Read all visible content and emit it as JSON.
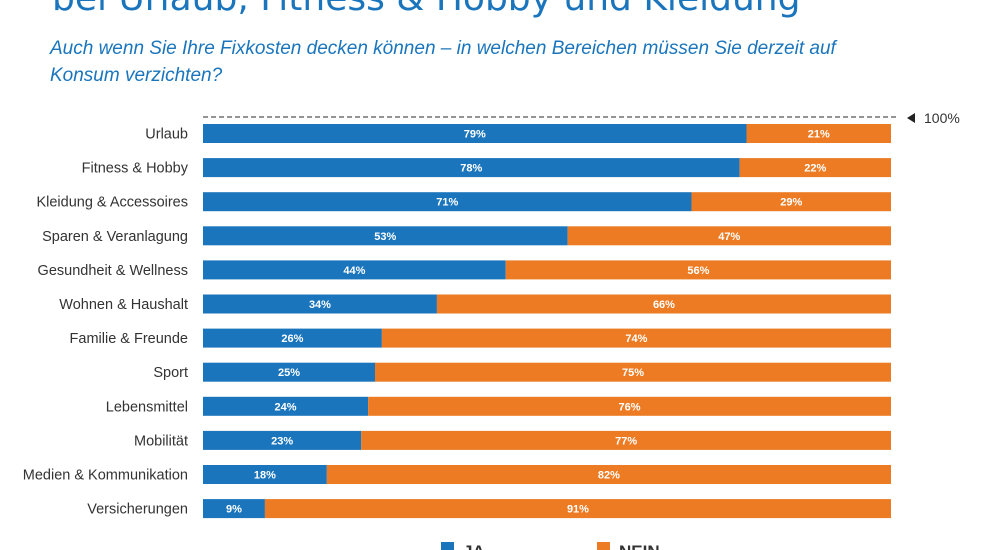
{
  "chart_data": {
    "type": "bar",
    "stacked": true,
    "orientation": "horizontal",
    "title": "bei Urlaub, Fitness & Hobby und Kleidung",
    "subtitle": "Auch wenn Sie Ihre Fixkosten decken können – in welchen Bereichen müssen Sie derzeit auf Konsum verzichten?",
    "reference_label": "100%",
    "categories": [
      "Urlaub",
      "Fitness & Hobby",
      "Kleidung & Accessoires",
      "Sparen & Veranlagung",
      "Gesundheit & Wellness",
      "Wohnen & Haushalt",
      "Familie & Freunde",
      "Sport",
      "Lebensmittel",
      "Mobilität",
      "Medien & Kommunikation",
      "Versicherungen"
    ],
    "series": [
      {
        "name": "JA",
        "color": "#1a75bc",
        "values": [
          79,
          78,
          71,
          53,
          44,
          34,
          26,
          25,
          24,
          23,
          18,
          9
        ]
      },
      {
        "name": "NEIN",
        "color": "#ec7b23",
        "values": [
          21,
          22,
          29,
          47,
          56,
          66,
          74,
          75,
          76,
          77,
          82,
          91
        ]
      }
    ],
    "xlim": [
      0,
      100
    ],
    "value_suffix": "%",
    "legend_position": "bottom"
  }
}
